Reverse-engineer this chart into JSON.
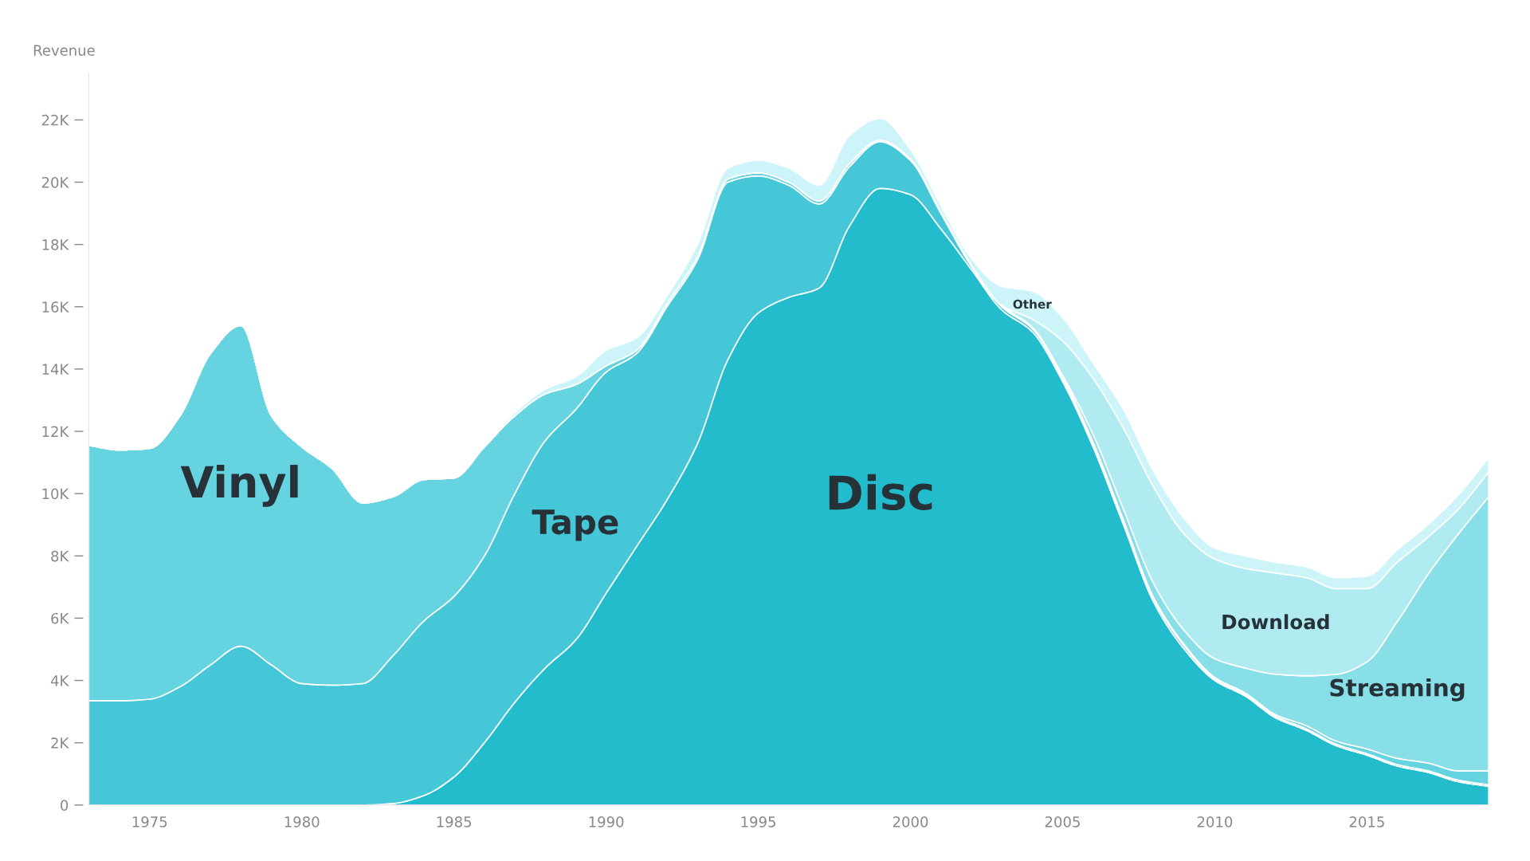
{
  "chart_data": {
    "type": "area",
    "stacked": true,
    "ylabel": "Revenue",
    "x": [
      1973,
      1974,
      1975,
      1976,
      1977,
      1978,
      1979,
      1980,
      1981,
      1982,
      1983,
      1984,
      1985,
      1986,
      1987,
      1988,
      1989,
      1990,
      1991,
      1992,
      1993,
      1994,
      1995,
      1996,
      1997,
      1998,
      1999,
      2000,
      2001,
      2002,
      2003,
      2004,
      2005,
      2006,
      2007,
      2008,
      2009,
      2010,
      2011,
      2012,
      2013,
      2014,
      2015,
      2016,
      2017,
      2018,
      2019
    ],
    "xlim": [
      1973,
      2019
    ],
    "xticks": [
      1975,
      1980,
      1985,
      1990,
      1995,
      2000,
      2005,
      2010,
      2015
    ],
    "ylim": [
      0,
      23.5
    ],
    "yticks": [
      {
        "value": 0,
        "label": "0"
      },
      {
        "value": 2,
        "label": "2K"
      },
      {
        "value": 4,
        "label": "4K"
      },
      {
        "value": 6,
        "label": "6K"
      },
      {
        "value": 8,
        "label": "8K"
      },
      {
        "value": 10,
        "label": "10K"
      },
      {
        "value": 12,
        "label": "12K"
      },
      {
        "value": 14,
        "label": "14K"
      },
      {
        "value": 16,
        "label": "16K"
      },
      {
        "value": 18,
        "label": "18K"
      },
      {
        "value": 20,
        "label": "20K"
      },
      {
        "value": 22,
        "label": "22K"
      }
    ],
    "grid": false,
    "legend": false,
    "series": [
      {
        "name": "Disc",
        "color": "#22bccd",
        "values": [
          0,
          0,
          0,
          0,
          0,
          0,
          0,
          0,
          0,
          0,
          0.05,
          0.3,
          0.9,
          2.0,
          3.3,
          4.4,
          5.3,
          6.8,
          8.3,
          9.8,
          11.6,
          14.3,
          15.8,
          16.3,
          16.6,
          18.6,
          19.8,
          19.6,
          18.5,
          17.2,
          15.9,
          15.2,
          13.6,
          11.5,
          9.0,
          6.5,
          5.0,
          4.0,
          3.5,
          2.8,
          2.4,
          1.9,
          1.6,
          1.25,
          1.05,
          0.75,
          0.6
        ]
      },
      {
        "name": "Tape",
        "color": "#45c7d8",
        "values": [
          3.35,
          3.35,
          3.4,
          3.8,
          4.5,
          5.1,
          4.5,
          3.9,
          3.85,
          3.9,
          4.75,
          5.6,
          5.8,
          6.0,
          6.7,
          7.3,
          7.4,
          7.1,
          6.2,
          6.2,
          5.9,
          5.7,
          4.4,
          3.6,
          2.7,
          1.9,
          1.5,
          1.1,
          0.5,
          0.1,
          0.1,
          0.1,
          0.1,
          0.1,
          0.1,
          0.1,
          0.1,
          0.05,
          0.05,
          0.05,
          0.05,
          0.05,
          0.05,
          0.05,
          0.05,
          0.05,
          0.05
        ]
      },
      {
        "name": "Vinyl",
        "color": "#66d3e0",
        "values": [
          8.2,
          8.05,
          8.05,
          8.7,
          10.0,
          10.3,
          8.0,
          7.6,
          6.95,
          5.8,
          5.1,
          4.55,
          3.8,
          3.5,
          2.5,
          1.5,
          0.8,
          0.2,
          0.1,
          0.1,
          0.1,
          0.1,
          0.1,
          0.1,
          0.1,
          0.1,
          0.05,
          0.05,
          0.05,
          0.05,
          0.05,
          0.05,
          0.05,
          0.05,
          0.05,
          0.05,
          0.05,
          0.05,
          0.05,
          0.05,
          0.1,
          0.1,
          0.15,
          0.2,
          0.25,
          0.3,
          0.45
        ]
      },
      {
        "name": "Streaming",
        "color": "#88dfe8",
        "values": [
          0,
          0,
          0,
          0,
          0,
          0,
          0,
          0,
          0,
          0,
          0,
          0,
          0,
          0,
          0,
          0,
          0,
          0,
          0,
          0,
          0,
          0,
          0,
          0,
          0,
          0,
          0,
          0,
          0,
          0,
          0,
          0,
          0.05,
          0.25,
          0.35,
          0.45,
          0.45,
          0.6,
          0.8,
          1.3,
          1.6,
          2.15,
          2.8,
          4.4,
          6.05,
          7.6,
          8.8
        ]
      },
      {
        "name": "Download",
        "color": "#afebf1",
        "values": [
          0,
          0,
          0,
          0,
          0,
          0,
          0,
          0,
          0,
          0,
          0,
          0,
          0,
          0,
          0,
          0,
          0,
          0,
          0,
          0,
          0,
          0,
          0,
          0,
          0,
          0,
          0,
          0,
          0,
          0,
          0,
          0.25,
          1.1,
          1.8,
          2.6,
          3.1,
          3.1,
          3.2,
          3.2,
          3.25,
          3.15,
          2.75,
          2.35,
          1.9,
          1.2,
          0.8,
          0.8
        ]
      },
      {
        "name": "Other",
        "color": "#cdf5f9",
        "values": [
          0,
          0,
          0,
          0,
          0,
          0,
          0,
          0,
          0,
          0,
          0,
          0,
          0,
          0,
          0.1,
          0.15,
          0.25,
          0.5,
          0.4,
          0.25,
          0.4,
          0.35,
          0.4,
          0.45,
          0.5,
          0.9,
          0.7,
          0.3,
          0.2,
          0.2,
          0.6,
          0.9,
          0.75,
          0.5,
          0.6,
          0.5,
          0.5,
          0.35,
          0.4,
          0.35,
          0.35,
          0.35,
          0.4,
          0.4,
          0.4,
          0.45,
          0.45
        ]
      }
    ]
  }
}
